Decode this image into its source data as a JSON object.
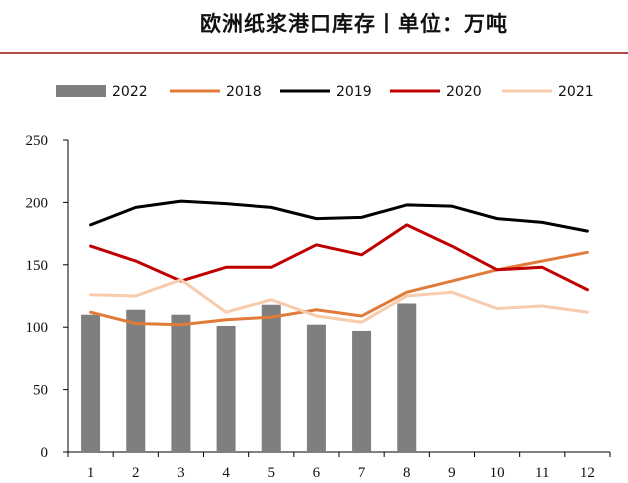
{
  "header": {
    "title": "欧洲纸浆港口库存丨单位：万吨"
  },
  "chart_data": {
    "type": "bar",
    "title": "欧洲纸浆港口库存丨单位：万吨",
    "xlabel": "",
    "ylabel": "",
    "categories": [
      "1",
      "2",
      "3",
      "4",
      "5",
      "6",
      "7",
      "8",
      "9",
      "10",
      "11",
      "12"
    ],
    "ylim": [
      0,
      250
    ],
    "yticks": [
      "0",
      "50",
      "100",
      "150",
      "200",
      "250"
    ],
    "grid": false,
    "legend_position": "top",
    "bar_series": {
      "name": "2022",
      "color": "#7f7f7f",
      "values": [
        110,
        114,
        110,
        101,
        118,
        102,
        97,
        119,
        null,
        null,
        null,
        null
      ]
    },
    "line_series": [
      {
        "name": "2018",
        "color": "#e07b39",
        "values": [
          112,
          103,
          102,
          106,
          108,
          114,
          109,
          128,
          137,
          146,
          153,
          160
        ]
      },
      {
        "name": "2019",
        "color": "#000000",
        "values": [
          182,
          196,
          201,
          199,
          196,
          187,
          188,
          198,
          197,
          187,
          184,
          177
        ]
      },
      {
        "name": "2020",
        "color": "#c00000",
        "values": [
          165,
          153,
          137,
          148,
          148,
          166,
          158,
          182,
          165,
          146,
          148,
          130
        ]
      },
      {
        "name": "2021",
        "color": "#f8cbad",
        "values": [
          126,
          125,
          138,
          112,
          122,
          109,
          104,
          125,
          128,
          115,
          117,
          112
        ]
      }
    ]
  }
}
